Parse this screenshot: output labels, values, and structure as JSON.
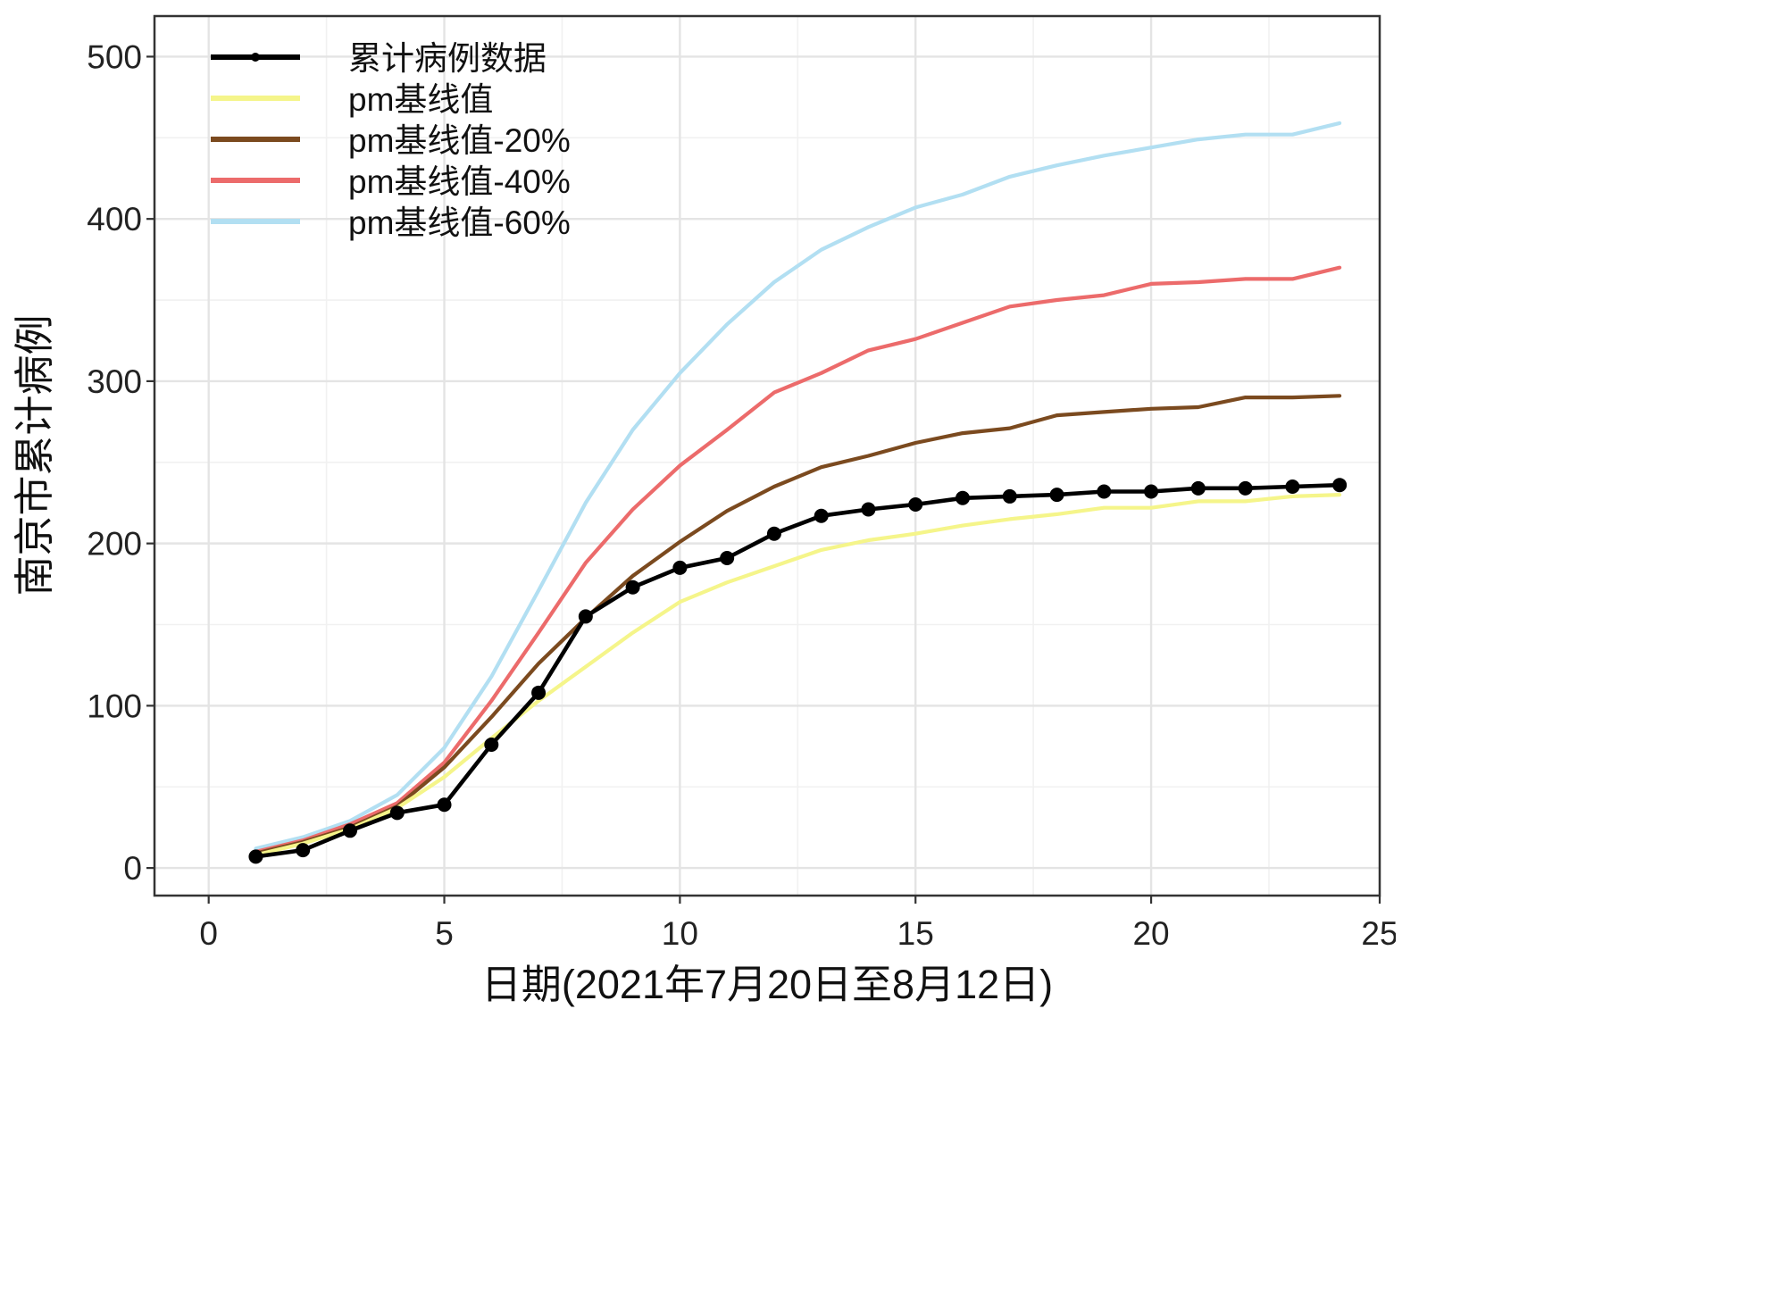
{
  "chart_data": {
    "type": "line",
    "xlabel": "日期(2021年7月20日至8月12日)",
    "ylabel": "南京市累计病例",
    "xlim": [
      -1.15,
      24.85
    ],
    "ylim": [
      -17,
      525
    ],
    "x_ticks": [
      0,
      5,
      10,
      15,
      20,
      25
    ],
    "y_ticks": [
      0,
      100,
      200,
      300,
      400,
      500
    ],
    "grid": true,
    "legend_position": "top-left",
    "x": [
      1,
      2,
      3,
      4,
      5,
      6,
      7,
      8,
      9,
      10,
      11,
      12,
      13,
      14,
      15,
      16,
      17,
      18,
      19,
      20,
      21,
      22,
      23,
      24
    ],
    "series": [
      {
        "name": "累计病例数据",
        "color": "#000000",
        "markers": true,
        "values": [
          7,
          11,
          23,
          34,
          39,
          76,
          108,
          155,
          173,
          185,
          191,
          206,
          217,
          221,
          224,
          228,
          229,
          230,
          232,
          232,
          234,
          234,
          235,
          236
        ]
      },
      {
        "name": "pm基线值",
        "color": "#f5f58a",
        "markers": false,
        "values": [
          8,
          15,
          24,
          37,
          56,
          80,
          103,
          124,
          145,
          164,
          176,
          186,
          196,
          202,
          206,
          211,
          215,
          218,
          222,
          222,
          226,
          226,
          229,
          230
        ]
      },
      {
        "name": "pm基线值-20%",
        "color": "#7b4a1f",
        "markers": false,
        "values": [
          9,
          16,
          25,
          38,
          62,
          93,
          126,
          154,
          180,
          201,
          220,
          235,
          247,
          254,
          262,
          268,
          271,
          279,
          281,
          283,
          284,
          290,
          290,
          291
        ]
      },
      {
        "name": "pm基线值-40%",
        "color": "#ec6b6b",
        "markers": false,
        "values": [
          10,
          17,
          27,
          40,
          65,
          103,
          145,
          188,
          221,
          248,
          270,
          293,
          305,
          319,
          326,
          336,
          346,
          350,
          353,
          360,
          361,
          363,
          363,
          370
        ]
      },
      {
        "name": "pm基线值-60%",
        "color": "#b2dff2",
        "markers": false,
        "values": [
          12,
          19,
          29,
          45,
          74,
          118,
          171,
          225,
          270,
          305,
          335,
          361,
          381,
          395,
          407,
          415,
          426,
          433,
          439,
          444,
          449,
          452,
          452,
          459
        ]
      }
    ]
  }
}
